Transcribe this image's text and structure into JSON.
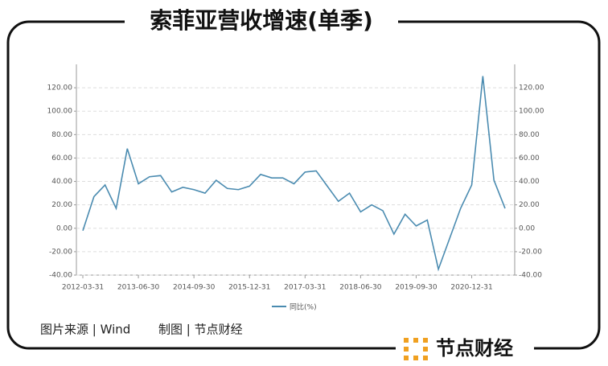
{
  "chart_data": {
    "type": "line",
    "title": "索菲亚营收增速(单季)",
    "categories": [
      "2012-03-31",
      null,
      null,
      null,
      null,
      "2013-06-30",
      null,
      null,
      null,
      null,
      "2014-09-30",
      null,
      null,
      null,
      null,
      "2015-12-31",
      null,
      null,
      null,
      null,
      "2017-03-31",
      null,
      null,
      null,
      null,
      "2018-06-30",
      null,
      null,
      null,
      null,
      "2019-09-30",
      null,
      null,
      null,
      null,
      "2020-12-31",
      null,
      null,
      null
    ],
    "series": [
      {
        "name": "同比(%)",
        "color": "#4a8bb0",
        "values": [
          -2,
          27,
          37,
          17,
          68,
          38,
          44,
          45,
          31,
          35,
          33,
          30,
          41,
          34,
          33,
          36,
          46,
          43,
          43,
          38,
          48,
          49,
          36,
          23,
          30,
          14,
          20,
          15,
          -5,
          12,
          2,
          7,
          -35,
          -9,
          17,
          37,
          130,
          41,
          17
        ]
      }
    ],
    "ylim": [
      -40,
      140
    ],
    "yticks": [
      {
        "value": -40,
        "label": "-40.00"
      },
      {
        "value": -20,
        "label": "-20.00"
      },
      {
        "value": 0,
        "label": "0.00"
      },
      {
        "value": 20,
        "label": "20.00"
      },
      {
        "value": 40,
        "label": "40.00"
      },
      {
        "value": 60,
        "label": "60.00"
      },
      {
        "value": 80,
        "label": "80.00"
      },
      {
        "value": 100,
        "label": "100.00"
      },
      {
        "value": 120,
        "label": "120.00"
      }
    ],
    "y2lim": [
      -40,
      140
    ],
    "y2ticks": [
      {
        "value": -40,
        "label": "-40.00"
      },
      {
        "value": -20,
        "label": "-20.00"
      },
      {
        "value": 0,
        "label": "0.00"
      },
      {
        "value": 20,
        "label": "20.00"
      },
      {
        "value": 40,
        "label": "40.00"
      },
      {
        "value": 60,
        "label": "60.00"
      },
      {
        "value": 80,
        "label": "80.00"
      },
      {
        "value": 100,
        "label": "100.00"
      },
      {
        "value": 120,
        "label": "120.00"
      }
    ],
    "grid": true
  },
  "footer": {
    "source": "图片来源 | Wind",
    "credit": "制图 | 节点财经",
    "logo": "节点财经"
  }
}
